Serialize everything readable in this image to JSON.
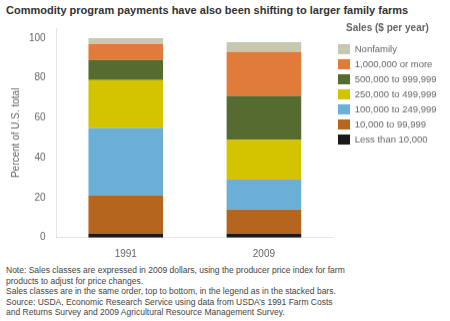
{
  "chart_data": {
    "type": "bar",
    "stacked": true,
    "title": "Commodity program payments have also been shifting to larger family farms",
    "ylabel": "Percent of U.S. total",
    "categories": [
      "1991",
      "2009"
    ],
    "series": [
      {
        "name": "Less than 10,000",
        "color": "#1a1a1a",
        "values": [
          2,
          2
        ]
      },
      {
        "name": "10,000 to 99,999",
        "color": "#b5651d",
        "values": [
          19,
          12
        ]
      },
      {
        "name": "100,000 to 249,999",
        "color": "#6baed6",
        "values": [
          34,
          15
        ]
      },
      {
        "name": "250,000 to 499,999",
        "color": "#d4c400",
        "values": [
          24,
          20
        ]
      },
      {
        "name": "500,000 to 999,999",
        "color": "#556b2f",
        "values": [
          10,
          22
        ]
      },
      {
        "name": "1,000,000 or more",
        "color": "#e07b39",
        "values": [
          8,
          22
        ]
      },
      {
        "name": "Nonfamily",
        "color": "#c8c8b0",
        "values": [
          3,
          5
        ]
      }
    ],
    "legend_title": "Sales ($ per year)",
    "legend": "right",
    "ylim": [
      0,
      105
    ],
    "yticks": [
      0,
      20,
      40,
      60,
      80,
      100
    ],
    "grid": false,
    "annotations": [
      "Note:  Sales classes are expressed in 2009 dollars, using the producer price index for farm",
      "products to adjust for price changes.",
      "Sales classes are in the same order, top to bottom, in the legend as in the stacked bars.",
      "Source: USDA, Economic Research Service using data from USDA’s 1991 Farm Costs",
      "and Returns Survey and 2009 Agricultural Resource Management Survey."
    ]
  }
}
